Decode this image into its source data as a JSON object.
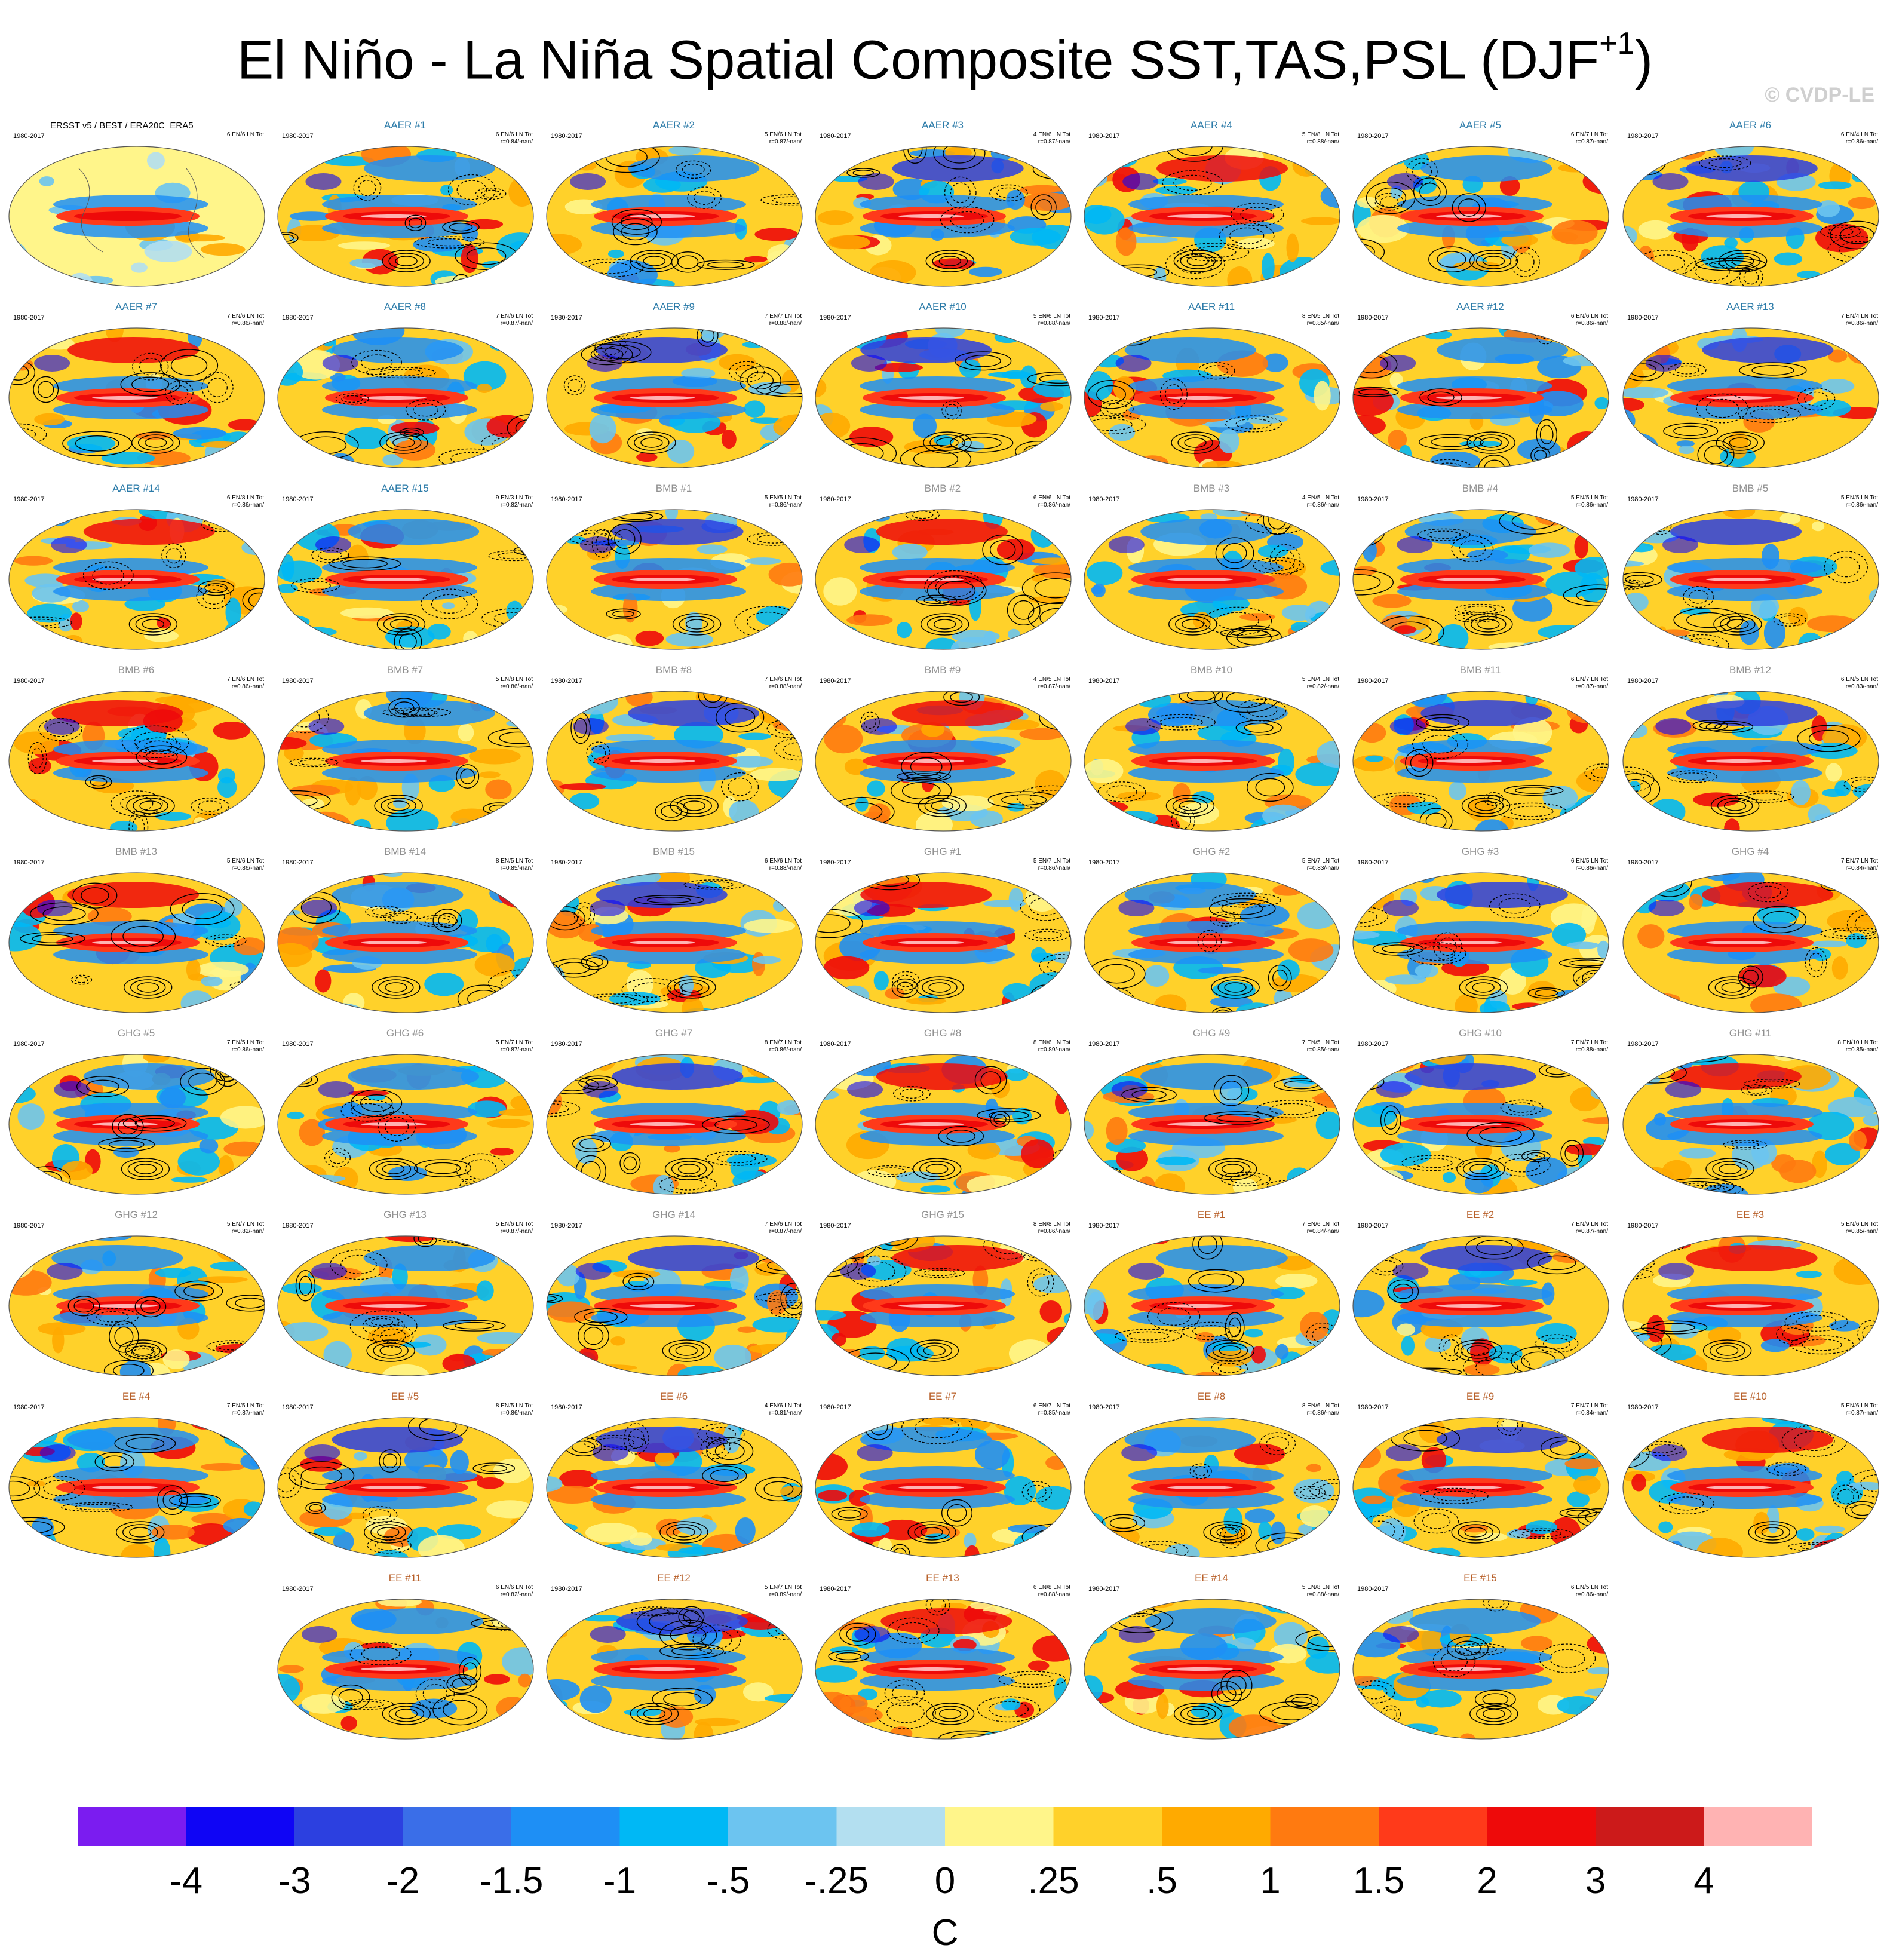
{
  "title": {
    "main": "El Niño - La Niña Spatial Composite SST,TAS,PSL (DJF",
    "superscript": "+1",
    "close": ")"
  },
  "copyright": "© CVDP-LE",
  "colors": {
    "aer_title": "#2a7aa8",
    "bmb_title": "#909090",
    "ghg_title": "#909090",
    "ee_title": "#b8602a"
  },
  "panels": [
    {
      "title": "ERSST v5 / BEST / ERA20C_ERA5",
      "years": "1980-2017",
      "counts": "6 EN/6 LN Tot",
      "r": "",
      "group": "obs",
      "col": 0,
      "row": 0
    },
    {
      "title": "AAER #1",
      "years": "1980-2017",
      "counts": "6 EN/6 LN Tot",
      "r": "r=0.84/-nan/",
      "group": "aer",
      "col": 1,
      "row": 0
    },
    {
      "title": "AAER #2",
      "years": "1980-2017",
      "counts": "5 EN/6 LN Tot",
      "r": "r=0.87/-nan/",
      "group": "aer",
      "col": 2,
      "row": 0
    },
    {
      "title": "AAER #3",
      "years": "1980-2017",
      "counts": "4 EN/6 LN Tot",
      "r": "r=0.87/-nan/",
      "group": "aer",
      "col": 3,
      "row": 0
    },
    {
      "title": "AAER #4",
      "years": "1980-2017",
      "counts": "5 EN/8 LN Tot",
      "r": "r=0.88/-nan/",
      "group": "aer",
      "col": 4,
      "row": 0
    },
    {
      "title": "AAER #5",
      "years": "1980-2017",
      "counts": "6 EN/7 LN Tot",
      "r": "r=0.87/-nan/",
      "group": "aer",
      "col": 5,
      "row": 0
    },
    {
      "title": "AAER #6",
      "years": "1980-2017",
      "counts": "6 EN/4 LN Tot",
      "r": "r=0.86/-nan/",
      "group": "aer",
      "col": 6,
      "row": 0
    },
    {
      "title": "AAER #7",
      "years": "1980-2017",
      "counts": "7 EN/6 LN Tot",
      "r": "r=0.86/-nan/",
      "group": "aer",
      "col": 0,
      "row": 1
    },
    {
      "title": "AAER #8",
      "years": "1980-2017",
      "counts": "7 EN/6 LN Tot",
      "r": "r=0.87/-nan/",
      "group": "aer",
      "col": 1,
      "row": 1
    },
    {
      "title": "AAER #9",
      "years": "1980-2017",
      "counts": "7 EN/7 LN Tot",
      "r": "r=0.88/-nan/",
      "group": "aer",
      "col": 2,
      "row": 1
    },
    {
      "title": "AAER #10",
      "years": "1980-2017",
      "counts": "5 EN/6 LN Tot",
      "r": "r=0.88/-nan/",
      "group": "aer",
      "col": 3,
      "row": 1
    },
    {
      "title": "AAER #11",
      "years": "1980-2017",
      "counts": "8 EN/5 LN Tot",
      "r": "r=0.85/-nan/",
      "group": "aer",
      "col": 4,
      "row": 1
    },
    {
      "title": "AAER #12",
      "years": "1980-2017",
      "counts": "6 EN/6 LN Tot",
      "r": "r=0.86/-nan/",
      "group": "aer",
      "col": 5,
      "row": 1
    },
    {
      "title": "AAER #13",
      "years": "1980-2017",
      "counts": "7 EN/4 LN Tot",
      "r": "r=0.86/-nan/",
      "group": "aer",
      "col": 6,
      "row": 1
    },
    {
      "title": "AAER #14",
      "years": "1980-2017",
      "counts": "6 EN/8 LN Tot",
      "r": "r=0.86/-nan/",
      "group": "aer",
      "col": 0,
      "row": 2
    },
    {
      "title": "AAER #15",
      "years": "1980-2017",
      "counts": "9 EN/3 LN Tot",
      "r": "r=0.82/-nan/",
      "group": "aer",
      "col": 1,
      "row": 2
    },
    {
      "title": "BMB #1",
      "years": "1980-2017",
      "counts": "5 EN/5 LN Tot",
      "r": "r=0.86/-nan/",
      "group": "bmb",
      "col": 2,
      "row": 2
    },
    {
      "title": "BMB #2",
      "years": "1980-2017",
      "counts": "6 EN/6 LN Tot",
      "r": "r=0.86/-nan/",
      "group": "bmb",
      "col": 3,
      "row": 2
    },
    {
      "title": "BMB #3",
      "years": "1980-2017",
      "counts": "4 EN/5 LN Tot",
      "r": "r=0.86/-nan/",
      "group": "bmb",
      "col": 4,
      "row": 2
    },
    {
      "title": "BMB #4",
      "years": "1980-2017",
      "counts": "5 EN/5 LN Tot",
      "r": "r=0.86/-nan/",
      "group": "bmb",
      "col": 5,
      "row": 2
    },
    {
      "title": "BMB #5",
      "years": "1980-2017",
      "counts": "5 EN/5 LN Tot",
      "r": "r=0.86/-nan/",
      "group": "bmb",
      "col": 6,
      "row": 2
    },
    {
      "title": "BMB #6",
      "years": "1980-2017",
      "counts": "7 EN/6 LN Tot",
      "r": "r=0.86/-nan/",
      "group": "bmb",
      "col": 0,
      "row": 3
    },
    {
      "title": "BMB #7",
      "years": "1980-2017",
      "counts": "5 EN/8 LN Tot",
      "r": "r=0.86/-nan/",
      "group": "bmb",
      "col": 1,
      "row": 3
    },
    {
      "title": "BMB #8",
      "years": "1980-2017",
      "counts": "7 EN/6 LN Tot",
      "r": "r=0.88/-nan/",
      "group": "bmb",
      "col": 2,
      "row": 3
    },
    {
      "title": "BMB #9",
      "years": "1980-2017",
      "counts": "4 EN/5 LN Tot",
      "r": "r=0.87/-nan/",
      "group": "bmb",
      "col": 3,
      "row": 3
    },
    {
      "title": "BMB #10",
      "years": "1980-2017",
      "counts": "5 EN/4 LN Tot",
      "r": "r=0.82/-nan/",
      "group": "bmb",
      "col": 4,
      "row": 3
    },
    {
      "title": "BMB #11",
      "years": "1980-2017",
      "counts": "6 EN/7 LN Tot",
      "r": "r=0.87/-nan/",
      "group": "bmb",
      "col": 5,
      "row": 3
    },
    {
      "title": "BMB #12",
      "years": "1980-2017",
      "counts": "6 EN/5 LN Tot",
      "r": "r=0.83/-nan/",
      "group": "bmb",
      "col": 6,
      "row": 3
    },
    {
      "title": "BMB #13",
      "years": "1980-2017",
      "counts": "5 EN/6 LN Tot",
      "r": "r=0.86/-nan/",
      "group": "bmb",
      "col": 0,
      "row": 4
    },
    {
      "title": "BMB #14",
      "years": "1980-2017",
      "counts": "8 EN/5 LN Tot",
      "r": "r=0.85/-nan/",
      "group": "bmb",
      "col": 1,
      "row": 4
    },
    {
      "title": "BMB #15",
      "years": "1980-2017",
      "counts": "6 EN/6 LN Tot",
      "r": "r=0.88/-nan/",
      "group": "bmb",
      "col": 2,
      "row": 4
    },
    {
      "title": "GHG #1",
      "years": "1980-2017",
      "counts": "5 EN/7 LN Tot",
      "r": "r=0.86/-nan/",
      "group": "ghg",
      "col": 3,
      "row": 4
    },
    {
      "title": "GHG #2",
      "years": "1980-2017",
      "counts": "5 EN/7 LN Tot",
      "r": "r=0.83/-nan/",
      "group": "ghg",
      "col": 4,
      "row": 4
    },
    {
      "title": "GHG #3",
      "years": "1980-2017",
      "counts": "6 EN/5 LN Tot",
      "r": "r=0.86/-nan/",
      "group": "ghg",
      "col": 5,
      "row": 4
    },
    {
      "title": "GHG #4",
      "years": "1980-2017",
      "counts": "7 EN/7 LN Tot",
      "r": "r=0.84/-nan/",
      "group": "ghg",
      "col": 6,
      "row": 4
    },
    {
      "title": "GHG #5",
      "years": "1980-2017",
      "counts": "7 EN/5 LN Tot",
      "r": "r=0.86/-nan/",
      "group": "ghg",
      "col": 0,
      "row": 5
    },
    {
      "title": "GHG #6",
      "years": "1980-2017",
      "counts": "5 EN/7 LN Tot",
      "r": "r=0.87/-nan/",
      "group": "ghg",
      "col": 1,
      "row": 5
    },
    {
      "title": "GHG #7",
      "years": "1980-2017",
      "counts": "8 EN/7 LN Tot",
      "r": "r=0.86/-nan/",
      "group": "ghg",
      "col": 2,
      "row": 5
    },
    {
      "title": "GHG #8",
      "years": "1980-2017",
      "counts": "8 EN/6 LN Tot",
      "r": "r=0.89/-nan/",
      "group": "ghg",
      "col": 3,
      "row": 5
    },
    {
      "title": "GHG #9",
      "years": "1980-2017",
      "counts": "7 EN/5 LN Tot",
      "r": "r=0.85/-nan/",
      "group": "ghg",
      "col": 4,
      "row": 5
    },
    {
      "title": "GHG #10",
      "years": "1980-2017",
      "counts": "7 EN/7 LN Tot",
      "r": "r=0.88/-nan/",
      "group": "ghg",
      "col": 5,
      "row": 5
    },
    {
      "title": "GHG #11",
      "years": "1980-2017",
      "counts": "8 EN/10 LN Tot",
      "r": "r=0.85/-nan/",
      "group": "ghg",
      "col": 6,
      "row": 5
    },
    {
      "title": "GHG #12",
      "years": "1980-2017",
      "counts": "5 EN/7 LN Tot",
      "r": "r=0.82/-nan/",
      "group": "ghg",
      "col": 0,
      "row": 6
    },
    {
      "title": "GHG #13",
      "years": "1980-2017",
      "counts": "5 EN/6 LN Tot",
      "r": "r=0.87/-nan/",
      "group": "ghg",
      "col": 1,
      "row": 6
    },
    {
      "title": "GHG #14",
      "years": "1980-2017",
      "counts": "7 EN/6 LN Tot",
      "r": "r=0.87/-nan/",
      "group": "ghg",
      "col": 2,
      "row": 6
    },
    {
      "title": "GHG #15",
      "years": "1980-2017",
      "counts": "8 EN/8 LN Tot",
      "r": "r=0.86/-nan/",
      "group": "ghg",
      "col": 3,
      "row": 6
    },
    {
      "title": "EE #1",
      "years": "1980-2017",
      "counts": "7 EN/6 LN Tot",
      "r": "r=0.84/-nan/",
      "group": "ee",
      "col": 4,
      "row": 6
    },
    {
      "title": "EE #2",
      "years": "1980-2017",
      "counts": "7 EN/9 LN Tot",
      "r": "r=0.87/-nan/",
      "group": "ee",
      "col": 5,
      "row": 6
    },
    {
      "title": "EE #3",
      "years": "1980-2017",
      "counts": "5 EN/6 LN Tot",
      "r": "r=0.85/-nan/",
      "group": "ee",
      "col": 6,
      "row": 6
    },
    {
      "title": "EE #4",
      "years": "1980-2017",
      "counts": "7 EN/5 LN Tot",
      "r": "r=0.87/-nan/",
      "group": "ee",
      "col": 0,
      "row": 7
    },
    {
      "title": "EE #5",
      "years": "1980-2017",
      "counts": "8 EN/5 LN Tot",
      "r": "r=0.86/-nan/",
      "group": "ee",
      "col": 1,
      "row": 7
    },
    {
      "title": "EE #6",
      "years": "1980-2017",
      "counts": "4 EN/6 LN Tot",
      "r": "r=0.81/-nan/",
      "group": "ee",
      "col": 2,
      "row": 7
    },
    {
      "title": "EE #7",
      "years": "1980-2017",
      "counts": "6 EN/7 LN Tot",
      "r": "r=0.85/-nan/",
      "group": "ee",
      "col": 3,
      "row": 7
    },
    {
      "title": "EE #8",
      "years": "1980-2017",
      "counts": "8 EN/6 LN Tot",
      "r": "r=0.86/-nan/",
      "group": "ee",
      "col": 4,
      "row": 7
    },
    {
      "title": "EE #9",
      "years": "1980-2017",
      "counts": "7 EN/7 LN Tot",
      "r": "r=0.84/-nan/",
      "group": "ee",
      "col": 5,
      "row": 7
    },
    {
      "title": "EE #10",
      "years": "1980-2017",
      "counts": "5 EN/6 LN Tot",
      "r": "r=0.87/-nan/",
      "group": "ee",
      "col": 6,
      "row": 7
    },
    {
      "title": "EE #11",
      "years": "1980-2017",
      "counts": "6 EN/6 LN Tot",
      "r": "r=0.82/-nan/",
      "group": "ee",
      "col": 1,
      "row": 8
    },
    {
      "title": "EE #12",
      "years": "1980-2017",
      "counts": "5 EN/7 LN Tot",
      "r": "r=0.89/-nan/",
      "group": "ee",
      "col": 2,
      "row": 8
    },
    {
      "title": "EE #13",
      "years": "1980-2017",
      "counts": "6 EN/8 LN Tot",
      "r": "r=0.88/-nan/",
      "group": "ee",
      "col": 3,
      "row": 8
    },
    {
      "title": "EE #14",
      "years": "1980-2017",
      "counts": "5 EN/8 LN Tot",
      "r": "r=0.88/-nan/",
      "group": "ee",
      "col": 4,
      "row": 8
    },
    {
      "title": "EE #15",
      "years": "1980-2017",
      "counts": "6 EN/5 LN Tot",
      "r": "r=0.86/-nan/",
      "group": "ee",
      "col": 5,
      "row": 8
    }
  ],
  "colorbar": {
    "colors": [
      "#7b1cf0",
      "#0f05f5",
      "#2c40e0",
      "#3a6ee8",
      "#1e8ff5",
      "#00b8f5",
      "#6cc4f0",
      "#b3dff0",
      "#fff58a",
      "#ffd12a",
      "#ffaa00",
      "#ff7a10",
      "#ff3a1a",
      "#ee0a0a",
      "#cc1a1a",
      "#ffb3b3"
    ],
    "labels": [
      "-4",
      "-3",
      "-2",
      "-1.5",
      "-1",
      "-.5",
      "-.25",
      "0",
      ".25",
      ".5",
      "1",
      "1.5",
      "2",
      "3",
      "4"
    ],
    "units": "C"
  }
}
